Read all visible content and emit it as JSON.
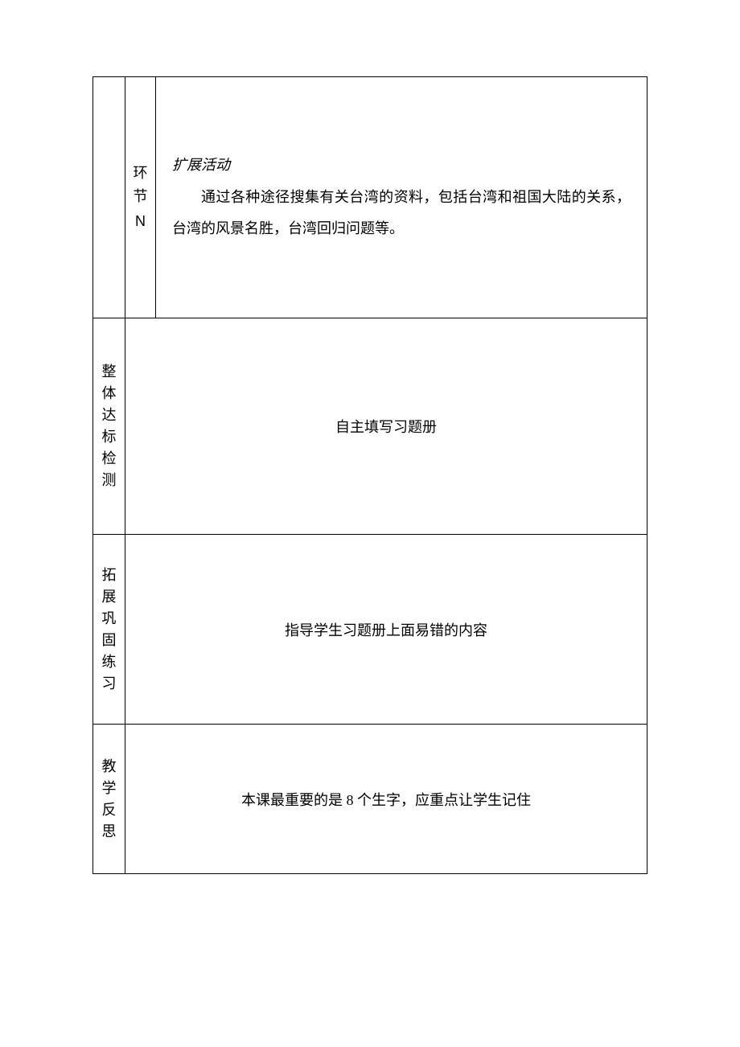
{
  "table": {
    "row1": {
      "col1": "",
      "col2_line1": "环",
      "col2_line2": "节",
      "col2_line3": "N",
      "content_title": "扩展活动",
      "content_body": "通过各种途径搜集有关台湾的资料，包括台湾和祖国大陆的关系，台湾的风景名胜，台湾回归问题等。"
    },
    "row2": {
      "label_c1": "整",
      "label_c2": "体",
      "label_c3": "达",
      "label_c4": "标",
      "label_c5": "检",
      "label_c6": "测",
      "content": "自主填写习题册"
    },
    "row3": {
      "label_c1": "拓",
      "label_c2": "展",
      "label_c3": "巩",
      "label_c4": "固",
      "label_c5": "练",
      "label_c6": "习",
      "content": "指导学生习题册上面易错的内容"
    },
    "row4": {
      "label_c1": "教",
      "label_c2": "学",
      "label_c3": "反",
      "label_c4": "思",
      "content": "本课最重要的是 8 个生字，应重点让学生记住"
    }
  },
  "styling": {
    "font_size": 18,
    "border_color": "#000000",
    "background_color": "#ffffff",
    "text_color": "#000000",
    "main_font": "KaiTi",
    "label_font": "SimSun"
  }
}
